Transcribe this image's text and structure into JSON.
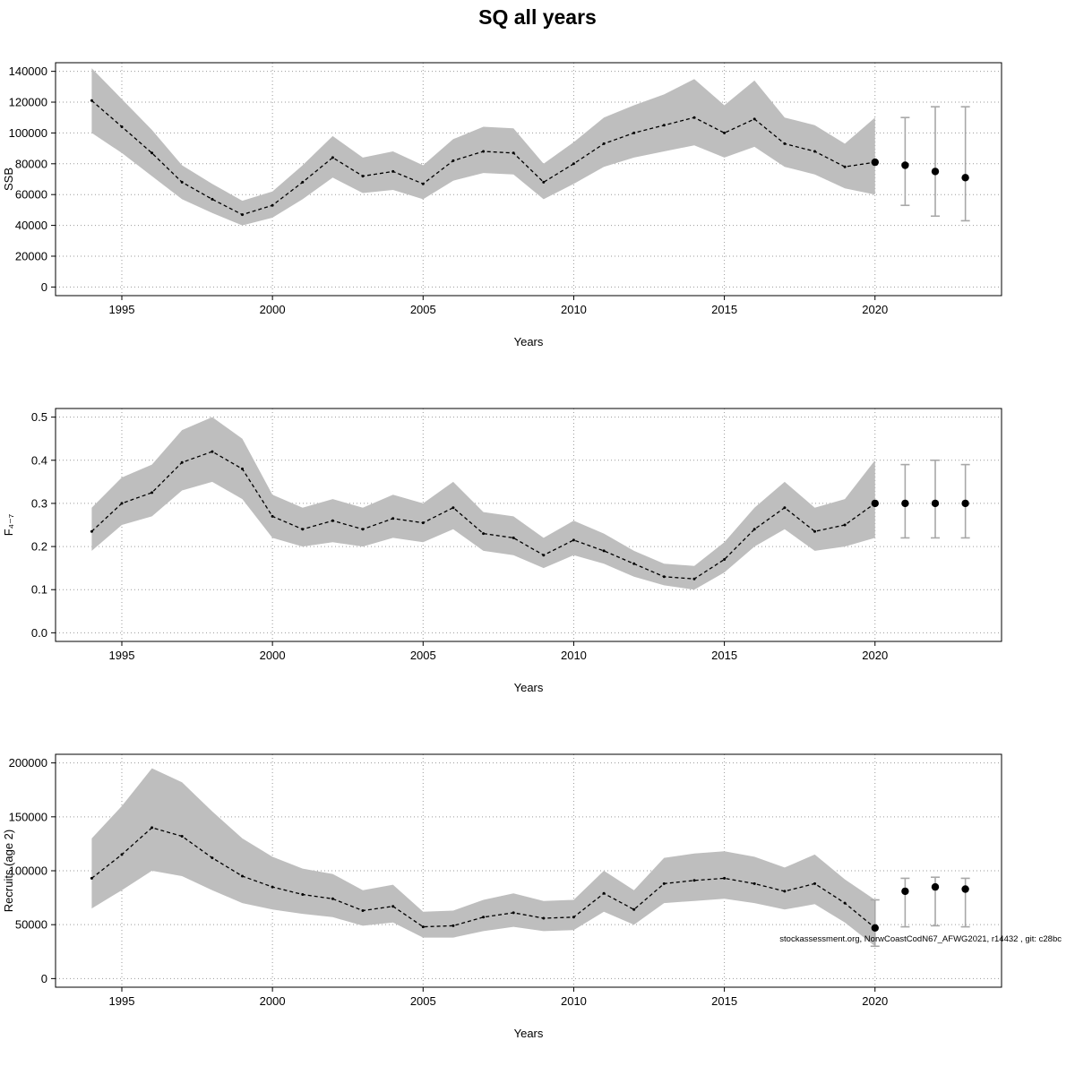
{
  "title": "SQ all years",
  "footer": {
    "attribution": "stockassessment.org, NorwCoastCodN67_AFWG2021, r14432 , git: c28bc"
  },
  "colors": {
    "band": "#bebebe",
    "line": "#000000",
    "errorbar": "#a8a8a8",
    "grid": "#9a9a9a",
    "box": "#000000"
  },
  "chart_data": [
    {
      "type": "line",
      "name": "ssb",
      "ylabel": "SSB",
      "xlabel": "Years",
      "xlim": [
        1992.8,
        2024.2
      ],
      "ylim": [
        0,
        140000
      ],
      "xticks": [
        1995,
        2000,
        2005,
        2010,
        2015,
        2020
      ],
      "yticks": [
        0,
        20000,
        40000,
        60000,
        80000,
        100000,
        120000,
        140000
      ],
      "ytick_labels": [
        "0",
        "20000",
        "40000",
        "60000",
        "80000",
        "100000",
        "120000",
        "140000"
      ],
      "x": [
        1994,
        1995,
        1996,
        1997,
        1998,
        1999,
        2000,
        2001,
        2002,
        2003,
        2004,
        2005,
        2006,
        2007,
        2008,
        2009,
        2010,
        2011,
        2012,
        2013,
        2014,
        2015,
        2016,
        2017,
        2018,
        2019,
        2020
      ],
      "mean": [
        121000,
        104000,
        87000,
        68000,
        57000,
        47000,
        53000,
        68000,
        84000,
        72000,
        75000,
        67000,
        82000,
        88000,
        87000,
        68000,
        80000,
        93000,
        100000,
        105000,
        110000,
        100000,
        109000,
        93000,
        88000,
        78000,
        81000
      ],
      "lower": [
        100000,
        87000,
        72000,
        57000,
        48000,
        40000,
        45000,
        57000,
        71000,
        61000,
        63000,
        57000,
        69000,
        74000,
        73000,
        57000,
        67000,
        78000,
        84000,
        88000,
        92000,
        84000,
        91000,
        78000,
        73000,
        64000,
        60000
      ],
      "upper": [
        142000,
        122000,
        102000,
        79000,
        67000,
        56000,
        62000,
        79000,
        98000,
        84000,
        88000,
        79000,
        96000,
        104000,
        103000,
        80000,
        94000,
        110000,
        118000,
        125000,
        135000,
        118000,
        134000,
        110000,
        105000,
        93000,
        110000
      ],
      "forecast": [
        {
          "x": 2020,
          "y": 81000,
          "lo": null,
          "hi": null
        },
        {
          "x": 2021,
          "y": 79000,
          "lo": 53000,
          "hi": 110000
        },
        {
          "x": 2022,
          "y": 75000,
          "lo": 46000,
          "hi": 117000
        },
        {
          "x": 2023,
          "y": 71000,
          "lo": 43000,
          "hi": 117000
        }
      ]
    },
    {
      "type": "line",
      "name": "f",
      "ylabel": "F₄₋₇",
      "xlabel": "Years",
      "xlim": [
        1992.8,
        2024.2
      ],
      "ylim": [
        0,
        0.5
      ],
      "xticks": [
        1995,
        2000,
        2005,
        2010,
        2015,
        2020
      ],
      "yticks": [
        0,
        0.1,
        0.2,
        0.3,
        0.4,
        0.5
      ],
      "ytick_labels": [
        "0.0",
        "0.1",
        "0.2",
        "0.3",
        "0.4",
        "0.5"
      ],
      "x": [
        1994,
        1995,
        1996,
        1997,
        1998,
        1999,
        2000,
        2001,
        2002,
        2003,
        2004,
        2005,
        2006,
        2007,
        2008,
        2009,
        2010,
        2011,
        2012,
        2013,
        2014,
        2015,
        2016,
        2017,
        2018,
        2019,
        2020
      ],
      "mean": [
        0.235,
        0.3,
        0.325,
        0.395,
        0.42,
        0.38,
        0.27,
        0.24,
        0.26,
        0.24,
        0.265,
        0.255,
        0.29,
        0.23,
        0.22,
        0.18,
        0.215,
        0.19,
        0.16,
        0.13,
        0.125,
        0.17,
        0.24,
        0.29,
        0.235,
        0.25,
        0.3
      ],
      "lower": [
        0.19,
        0.25,
        0.27,
        0.33,
        0.35,
        0.31,
        0.22,
        0.2,
        0.21,
        0.2,
        0.22,
        0.21,
        0.24,
        0.19,
        0.18,
        0.15,
        0.18,
        0.16,
        0.13,
        0.11,
        0.1,
        0.14,
        0.2,
        0.24,
        0.19,
        0.2,
        0.22
      ],
      "upper": [
        0.29,
        0.36,
        0.39,
        0.47,
        0.5,
        0.45,
        0.32,
        0.29,
        0.31,
        0.29,
        0.32,
        0.3,
        0.35,
        0.28,
        0.27,
        0.22,
        0.26,
        0.23,
        0.19,
        0.16,
        0.155,
        0.21,
        0.29,
        0.35,
        0.29,
        0.31,
        0.4
      ],
      "forecast": [
        {
          "x": 2020,
          "y": 0.3,
          "lo": null,
          "hi": null
        },
        {
          "x": 2021,
          "y": 0.3,
          "lo": 0.22,
          "hi": 0.39
        },
        {
          "x": 2022,
          "y": 0.3,
          "lo": 0.22,
          "hi": 0.4
        },
        {
          "x": 2023,
          "y": 0.3,
          "lo": 0.22,
          "hi": 0.39
        }
      ]
    },
    {
      "type": "line",
      "name": "recruits",
      "ylabel": "Recruits (age 2)",
      "xlabel": "Years",
      "xlim": [
        1992.8,
        2024.2
      ],
      "ylim": [
        0,
        200000
      ],
      "xticks": [
        1995,
        2000,
        2005,
        2010,
        2015,
        2020
      ],
      "yticks": [
        0,
        50000,
        100000,
        150000,
        200000
      ],
      "ytick_labels": [
        "0",
        "50000",
        "100000",
        "150000",
        "200000"
      ],
      "x": [
        1994,
        1995,
        1996,
        1997,
        1998,
        1999,
        2000,
        2001,
        2002,
        2003,
        2004,
        2005,
        2006,
        2007,
        2008,
        2009,
        2010,
        2011,
        2012,
        2013,
        2014,
        2015,
        2016,
        2017,
        2018,
        2019,
        2020
      ],
      "mean": [
        93000,
        115000,
        140000,
        132000,
        112000,
        95000,
        85000,
        78000,
        74000,
        63000,
        67000,
        48000,
        49000,
        57000,
        61000,
        56000,
        57000,
        79000,
        64000,
        88000,
        91000,
        93000,
        88000,
        81000,
        88000,
        70000,
        47000
      ],
      "lower": [
        65000,
        82000,
        100000,
        95000,
        82000,
        70000,
        64000,
        60000,
        57000,
        49000,
        52000,
        38000,
        38000,
        44000,
        48000,
        44000,
        45000,
        62000,
        50000,
        70000,
        72000,
        74000,
        70000,
        64000,
        69000,
        52000,
        30000
      ],
      "upper": [
        130000,
        160000,
        195000,
        182000,
        155000,
        130000,
        113000,
        102000,
        97000,
        82000,
        87000,
        62000,
        63000,
        73000,
        79000,
        72000,
        73000,
        100000,
        82000,
        112000,
        116000,
        118000,
        113000,
        103000,
        115000,
        92000,
        73000
      ],
      "forecast": [
        {
          "x": 2020,
          "y": 47000,
          "lo": 30000,
          "hi": 73000
        },
        {
          "x": 2021,
          "y": 81000,
          "lo": 48000,
          "hi": 93000
        },
        {
          "x": 2022,
          "y": 85000,
          "lo": 49000,
          "hi": 94000
        },
        {
          "x": 2023,
          "y": 83000,
          "lo": 48000,
          "hi": 93000
        }
      ]
    }
  ]
}
